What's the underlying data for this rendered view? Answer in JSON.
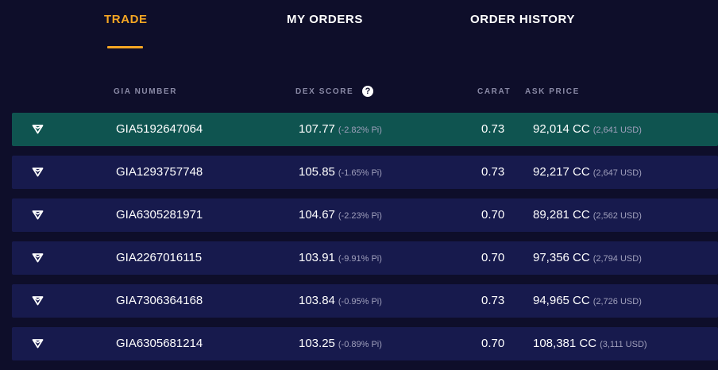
{
  "tabs": [
    {
      "label": "TRADE",
      "active": true
    },
    {
      "label": "MY ORDERS",
      "active": false
    },
    {
      "label": "ORDER HISTORY",
      "active": false
    }
  ],
  "columns": {
    "gia": "GIA NUMBER",
    "dex": "DEX SCORE",
    "dex_help": "?",
    "carat": "CARAT",
    "ask": "ASK PRICE"
  },
  "colors": {
    "accent": "#f5a623",
    "background": "#0e0e2a",
    "row": "#171a4d",
    "row_selected": "#0f5450"
  },
  "row_icon": "diamond-icon",
  "rows": [
    {
      "gia": "GIA5192647064",
      "score": "107.77",
      "score_change": "(-2.82% Pi)",
      "carat": "0.73",
      "price": "92,014 CC",
      "price_usd": "(2,641 USD)",
      "selected": true
    },
    {
      "gia": "GIA1293757748",
      "score": "105.85",
      "score_change": "(-1.65% Pi)",
      "carat": "0.73",
      "price": "92,217 CC",
      "price_usd": "(2,647 USD)",
      "selected": false
    },
    {
      "gia": "GIA6305281971",
      "score": "104.67",
      "score_change": "(-2.23% Pi)",
      "carat": "0.70",
      "price": "89,281 CC",
      "price_usd": "(2,562 USD)",
      "selected": false
    },
    {
      "gia": "GIA2267016115",
      "score": "103.91",
      "score_change": "(-9.91% Pi)",
      "carat": "0.70",
      "price": "97,356 CC",
      "price_usd": "(2,794 USD)",
      "selected": false
    },
    {
      "gia": "GIA7306364168",
      "score": "103.84",
      "score_change": "(-0.95% Pi)",
      "carat": "0.73",
      "price": "94,965 CC",
      "price_usd": "(2,726 USD)",
      "selected": false
    },
    {
      "gia": "GIA6305681214",
      "score": "103.25",
      "score_change": "(-0.89% Pi)",
      "carat": "0.70",
      "price": "108,381 CC",
      "price_usd": "(3,111 USD)",
      "selected": false
    }
  ]
}
